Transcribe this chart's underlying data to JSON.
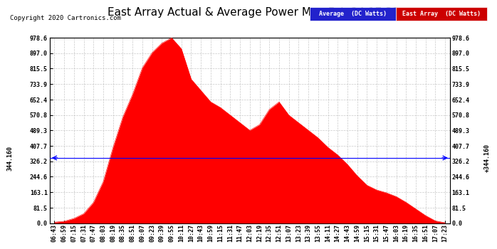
{
  "title": "East Array Actual & Average Power Mon Feb 24 17:31",
  "copyright": "Copyright 2020 Cartronics.com",
  "avg_line_value": 344.16,
  "avg_label": "344.160",
  "ylim": [
    0,
    978.6
  ],
  "yticks": [
    0.0,
    81.5,
    163.1,
    244.6,
    326.2,
    407.7,
    489.3,
    570.8,
    652.4,
    733.9,
    815.5,
    897.0,
    978.6
  ],
  "fill_color": "#ff0000",
  "avg_line_color": "#0000ff",
  "background_color": "#ffffff",
  "grid_color": "#bbbbbb",
  "title_fontsize": 11,
  "copyright_fontsize": 6.5,
  "tick_fontsize": 6,
  "x_tick_labels": [
    "06:43",
    "06:59",
    "07:15",
    "07:31",
    "07:47",
    "08:03",
    "08:19",
    "08:35",
    "08:51",
    "09:07",
    "09:23",
    "09:39",
    "09:55",
    "10:11",
    "10:27",
    "10:43",
    "10:59",
    "11:15",
    "11:31",
    "11:47",
    "12:03",
    "12:19",
    "12:35",
    "12:51",
    "13:07",
    "13:23",
    "13:39",
    "13:55",
    "14:11",
    "14:27",
    "14:43",
    "14:59",
    "15:15",
    "15:31",
    "15:47",
    "16:03",
    "16:19",
    "16:35",
    "16:51",
    "17:07",
    "17:23"
  ],
  "east_array_values": [
    5,
    10,
    25,
    50,
    110,
    220,
    400,
    560,
    680,
    820,
    900,
    950,
    978,
    920,
    760,
    700,
    640,
    610,
    570,
    530,
    490,
    520,
    600,
    640,
    570,
    530,
    490,
    450,
    400,
    360,
    310,
    250,
    200,
    175,
    160,
    140,
    110,
    75,
    40,
    12,
    2
  ],
  "legend_blue_label": "Average  (DC Watts)",
  "legend_red_label": "East Array  (DC Watts)",
  "legend_blue_color": "#2222cc",
  "legend_red_color": "#cc0000"
}
